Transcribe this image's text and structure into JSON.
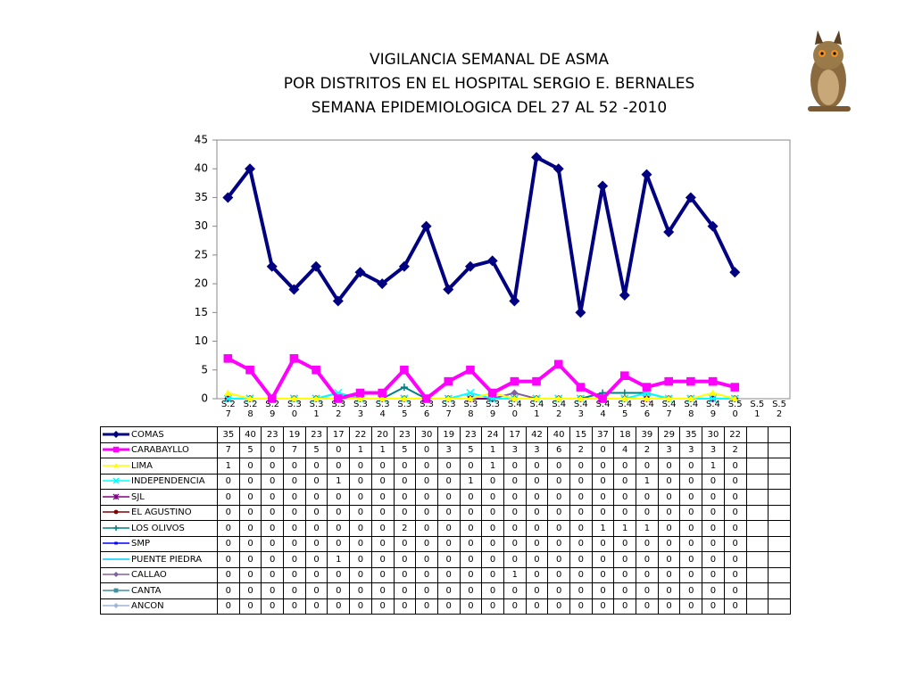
{
  "chart_data": {
    "type": "line",
    "title": [
      "VIGILANCIA SEMANAL DE ASMA",
      "POR DISTRITOS EN EL HOSPITAL SERGIO E. BERNALES",
      "SEMANA EPIDEMIOLOGICA DEL 27 AL 52 -2010"
    ],
    "categories": [
      "S.27",
      "S.28",
      "S.29",
      "S.30",
      "S.31",
      "S.32",
      "S.33",
      "S.34",
      "S.35",
      "S.36",
      "S.37",
      "S.38",
      "S.39",
      "S.40",
      "S.41",
      "S.42",
      "S.43",
      "S.44",
      "S.45",
      "S.46",
      "S.47",
      "S.48",
      "S.49",
      "S.50",
      "S.51",
      "S.52"
    ],
    "ylim": [
      0,
      45
    ],
    "yticks": [
      0,
      5,
      10,
      15,
      20,
      25,
      30,
      35,
      40,
      45
    ],
    "grid": false,
    "series": [
      {
        "name": "COMAS",
        "color": "#000080",
        "marker": "diamond",
        "values": [
          35,
          40,
          23,
          19,
          23,
          17,
          22,
          20,
          23,
          30,
          19,
          23,
          24,
          17,
          42,
          40,
          15,
          37,
          18,
          39,
          29,
          35,
          30,
          22,
          null,
          null
        ]
      },
      {
        "name": "CARABAYLLO",
        "color": "#ff00ff",
        "marker": "square",
        "values": [
          7,
          5,
          0,
          7,
          5,
          0,
          1,
          1,
          5,
          0,
          3,
          5,
          1,
          3,
          3,
          6,
          2,
          0,
          4,
          2,
          3,
          3,
          3,
          2,
          null,
          null
        ]
      },
      {
        "name": "LIMA",
        "color": "#ffff00",
        "marker": "triangle",
        "values": [
          1,
          0,
          0,
          0,
          0,
          0,
          0,
          0,
          0,
          0,
          0,
          0,
          1,
          0,
          0,
          0,
          0,
          0,
          0,
          0,
          0,
          0,
          1,
          0,
          null,
          null
        ]
      },
      {
        "name": "INDEPENDENCIA",
        "color": "#00ffff",
        "marker": "x",
        "values": [
          0,
          0,
          0,
          0,
          0,
          1,
          0,
          0,
          0,
          0,
          0,
          1,
          0,
          0,
          0,
          0,
          0,
          0,
          0,
          1,
          0,
          0,
          0,
          0,
          null,
          null
        ]
      },
      {
        "name": "SJL",
        "color": "#800080",
        "marker": "star",
        "values": [
          0,
          0,
          0,
          0,
          0,
          0,
          0,
          0,
          0,
          0,
          0,
          0,
          0,
          0,
          0,
          0,
          0,
          0,
          0,
          0,
          0,
          0,
          0,
          0,
          null,
          null
        ]
      },
      {
        "name": "EL AGUSTINO",
        "color": "#800000",
        "marker": "circle",
        "values": [
          0,
          0,
          0,
          0,
          0,
          0,
          0,
          0,
          0,
          0,
          0,
          0,
          0,
          0,
          0,
          0,
          0,
          0,
          0,
          0,
          0,
          0,
          0,
          0,
          null,
          null
        ]
      },
      {
        "name": "LOS OLIVOS",
        "color": "#008080",
        "marker": "plus",
        "values": [
          0,
          0,
          0,
          0,
          0,
          0,
          0,
          0,
          2,
          0,
          0,
          0,
          0,
          0,
          0,
          0,
          0,
          1,
          1,
          1,
          0,
          0,
          0,
          0,
          null,
          null
        ]
      },
      {
        "name": "SMP",
        "color": "#0000ff",
        "marker": "dash",
        "values": [
          0,
          0,
          0,
          0,
          0,
          0,
          0,
          0,
          0,
          0,
          0,
          0,
          0,
          0,
          0,
          0,
          0,
          0,
          0,
          0,
          0,
          0,
          0,
          0,
          null,
          null
        ]
      },
      {
        "name": "PUENTE PIEDRA",
        "color": "#00ccff",
        "marker": "none",
        "values": [
          0,
          0,
          0,
          0,
          0,
          1,
          0,
          0,
          0,
          0,
          0,
          0,
          0,
          0,
          0,
          0,
          0,
          0,
          0,
          0,
          0,
          0,
          0,
          0,
          null,
          null
        ]
      },
      {
        "name": "CALLAO",
        "color": "#8060a0",
        "marker": "diamond",
        "values": [
          0,
          0,
          0,
          0,
          0,
          0,
          0,
          0,
          0,
          0,
          0,
          0,
          0,
          1,
          0,
          0,
          0,
          0,
          0,
          0,
          0,
          0,
          0,
          0,
          null,
          null
        ]
      },
      {
        "name": "CANTA",
        "color": "#4090a0",
        "marker": "square",
        "values": [
          0,
          0,
          0,
          0,
          0,
          0,
          0,
          0,
          0,
          0,
          0,
          0,
          0,
          0,
          0,
          0,
          0,
          0,
          0,
          0,
          0,
          0,
          0,
          0,
          null,
          null
        ]
      },
      {
        "name": "ANCON",
        "color": "#a0b4d8",
        "marker": "diamond",
        "values": [
          0,
          0,
          0,
          0,
          0,
          0,
          0,
          0,
          0,
          0,
          0,
          0,
          0,
          0,
          0,
          0,
          0,
          0,
          0,
          0,
          0,
          0,
          0,
          0,
          null,
          null
        ]
      }
    ]
  }
}
